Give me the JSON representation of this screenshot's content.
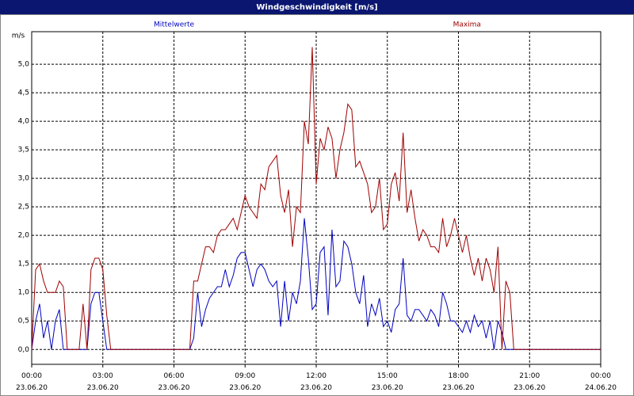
{
  "chart_data": {
    "type": "line",
    "title": "Windgeschwindigkeit [m/s]",
    "ylabel": "m/s",
    "x": [
      0,
      10,
      20,
      30,
      40,
      50,
      60,
      70,
      80,
      90,
      100,
      110,
      120,
      130,
      140,
      150,
      160,
      170,
      180,
      190,
      200,
      210,
      220,
      230,
      240,
      250,
      260,
      270,
      280,
      290,
      300,
      310,
      320,
      330,
      340,
      350,
      360,
      370,
      380,
      390,
      400,
      410,
      420,
      430,
      440,
      450,
      460,
      470,
      480,
      490,
      500,
      510,
      520,
      530,
      540,
      550,
      560,
      570,
      580,
      590,
      600,
      610,
      620,
      630,
      640,
      650,
      660,
      670,
      680,
      690,
      700,
      710,
      720,
      730,
      740,
      750,
      760,
      770,
      780,
      790,
      800,
      810,
      820,
      830,
      840,
      850,
      860,
      870,
      880,
      890,
      900,
      910,
      920,
      930,
      940,
      950,
      960,
      970,
      980,
      990,
      1000,
      1010,
      1020,
      1030,
      1040,
      1050,
      1060,
      1070,
      1080,
      1090,
      1100,
      1110,
      1120,
      1130,
      1140,
      1150,
      1160,
      1170,
      1180,
      1190,
      1200,
      1210,
      1220,
      1230,
      1240,
      1250,
      1260,
      1270,
      1280,
      1290,
      1300,
      1310,
      1320,
      1330,
      1340,
      1350,
      1360,
      1370,
      1380,
      1390,
      1400,
      1410,
      1420,
      1430,
      1440
    ],
    "series": [
      {
        "name": "Mittelwerte",
        "color": "#0000c0",
        "values": [
          0,
          0.5,
          0.8,
          0.2,
          0.5,
          0,
          0.5,
          0.7,
          0,
          0,
          0,
          0,
          0,
          0,
          0,
          0.8,
          1.0,
          1.0,
          0.5,
          0,
          0,
          0,
          0,
          0,
          0,
          0,
          0,
          0,
          0,
          0,
          0,
          0,
          0,
          0,
          0,
          0,
          0,
          0,
          0,
          0,
          0,
          0.2,
          1.0,
          0.4,
          0.7,
          0.9,
          1.0,
          1.1,
          1.1,
          1.4,
          1.1,
          1.3,
          1.6,
          1.7,
          1.7,
          1.4,
          1.1,
          1.4,
          1.5,
          1.4,
          1.2,
          1.1,
          1.2,
          0.4,
          1.2,
          0.5,
          1.0,
          0.8,
          1.2,
          2.3,
          1.6,
          0.7,
          0.8,
          1.7,
          1.8,
          0.6,
          2.1,
          1.1,
          1.2,
          1.9,
          1.8,
          1.5,
          1.0,
          0.8,
          1.3,
          0.4,
          0.8,
          0.6,
          0.9,
          0.4,
          0.5,
          0.3,
          0.7,
          0.8,
          1.6,
          0.6,
          0.5,
          0.7,
          0.7,
          0.6,
          0.5,
          0.7,
          0.6,
          0.4,
          1.0,
          0.8,
          0.5,
          0.5,
          0.4,
          0.3,
          0.5,
          0.3,
          0.6,
          0.4,
          0.5,
          0.2,
          0.5,
          0,
          0.5,
          0.3,
          0,
          0,
          0,
          0,
          0,
          0,
          0,
          0,
          0,
          0,
          0,
          0,
          0,
          0,
          0,
          0,
          0,
          0,
          0,
          0,
          0,
          0,
          0,
          0,
          0
        ]
      },
      {
        "name": "Maxima",
        "color": "#a00000",
        "values": [
          0,
          1.4,
          1.5,
          1.2,
          1.0,
          1.0,
          1.0,
          1.2,
          1.1,
          0,
          0,
          0,
          0,
          0.8,
          0,
          1.4,
          1.6,
          1.6,
          1.4,
          0.6,
          0,
          0,
          0,
          0,
          0,
          0,
          0,
          0,
          0,
          0,
          0,
          0,
          0,
          0,
          0,
          0,
          0,
          0,
          0,
          0,
          0,
          1.2,
          1.2,
          1.5,
          1.8,
          1.8,
          1.7,
          2.0,
          2.1,
          2.1,
          2.2,
          2.3,
          2.1,
          2.4,
          2.7,
          2.5,
          2.4,
          2.3,
          2.9,
          2.8,
          3.2,
          3.3,
          3.4,
          2.7,
          2.4,
          2.8,
          1.8,
          2.5,
          2.4,
          4.0,
          3.6,
          5.3,
          2.9,
          3.7,
          3.5,
          3.9,
          3.7,
          3.0,
          3.5,
          3.8,
          4.3,
          4.2,
          3.2,
          3.3,
          3.1,
          2.9,
          2.4,
          2.5,
          3.0,
          2.1,
          2.2,
          2.9,
          3.1,
          2.6,
          3.8,
          2.4,
          2.8,
          2.3,
          1.9,
          2.1,
          2.0,
          1.8,
          1.8,
          1.7,
          2.3,
          1.8,
          2.0,
          2.3,
          2.0,
          1.7,
          2.0,
          1.6,
          1.3,
          1.6,
          1.2,
          1.6,
          1.4,
          1.0,
          1.8,
          0,
          1.2,
          1.0,
          0,
          0,
          0,
          0,
          0,
          0,
          0,
          0,
          0,
          0,
          0,
          0,
          0,
          0,
          0,
          0,
          0,
          0,
          0,
          0,
          0,
          0,
          0
        ]
      }
    ],
    "xlim": [
      0,
      1440
    ],
    "xticks": [
      {
        "value": 0,
        "label": "00:00 23.06.20"
      },
      {
        "value": 180,
        "label": "03:00 23.06.20"
      },
      {
        "value": 360,
        "label": "06:00 23.06.20"
      },
      {
        "value": 540,
        "label": "09:00 23.06.20"
      },
      {
        "value": 720,
        "label": "12:00 23.06.20"
      },
      {
        "value": 900,
        "label": "15:00 23.06.20"
      },
      {
        "value": 1080,
        "label": "18:00 23.06.20"
      },
      {
        "value": 1260,
        "label": "21:00 23.06.20"
      },
      {
        "value": 1440,
        "label": "00:00 24.06.20"
      }
    ],
    "ylim": [
      -0.26,
      5.57
    ],
    "yticks": [
      {
        "value": 0,
        "label": "0,0"
      },
      {
        "value": 0.5,
        "label": "0,5"
      },
      {
        "value": 1,
        "label": "1,0"
      },
      {
        "value": 1.5,
        "label": "1,5"
      },
      {
        "value": 2,
        "label": "2,0"
      },
      {
        "value": 2.5,
        "label": "2,5"
      },
      {
        "value": 3,
        "label": "3,0"
      },
      {
        "value": 3.5,
        "label": "3,5"
      },
      {
        "value": 4,
        "label": "4,0"
      },
      {
        "value": 4.5,
        "label": "4,5"
      },
      {
        "value": 5,
        "label": "5,0"
      }
    ],
    "grid": true
  }
}
